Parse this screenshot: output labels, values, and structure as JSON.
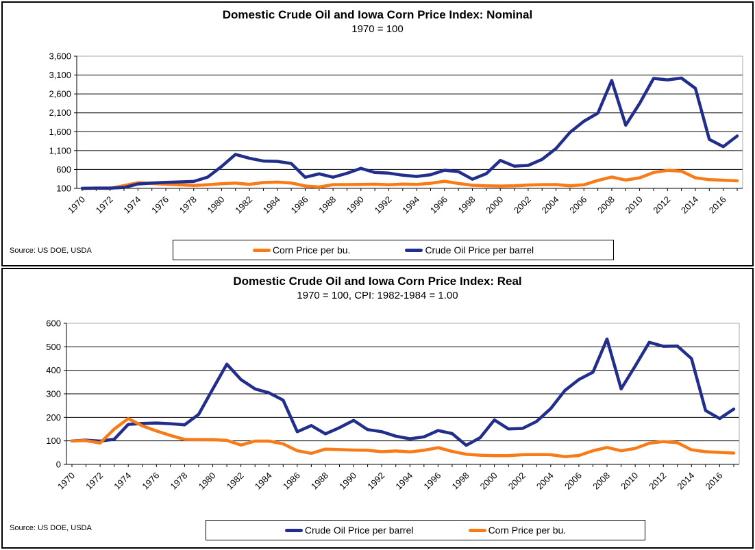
{
  "colors": {
    "corn_orange": "#F87B17",
    "crude_navy": "#222E8C",
    "gridline": "#000000",
    "plot_border": "#A8A8A8",
    "background": "#FFFFFF"
  },
  "chart_data": [
    {
      "type": "line",
      "title": "Domestic Crude Oil and Iowa Corn Price Index: Nominal",
      "subtitle": "1970 = 100",
      "source": "Source: US DOE, USDA",
      "x": [
        1970,
        1971,
        1972,
        1973,
        1974,
        1975,
        1976,
        1977,
        1978,
        1979,
        1980,
        1981,
        1982,
        1983,
        1984,
        1985,
        1986,
        1987,
        1988,
        1989,
        1990,
        1991,
        1992,
        1993,
        1994,
        1995,
        1996,
        1997,
        1998,
        1999,
        2000,
        2001,
        2002,
        2003,
        2004,
        2005,
        2006,
        2007,
        2008,
        2009,
        2010,
        2011,
        2012,
        2013,
        2014,
        2015,
        2016,
        2017
      ],
      "x_tick_labels": [
        "1970",
        "1972",
        "1974",
        "1976",
        "1978",
        "1980",
        "1982",
        "1984",
        "1986",
        "1988",
        "1990",
        "1992",
        "1994",
        "1996",
        "1998",
        "2000",
        "2002",
        "2004",
        "2006",
        "2008",
        "2010",
        "2012",
        "2014",
        "2016"
      ],
      "ylim": [
        100,
        3600
      ],
      "y_ticks": [
        100,
        600,
        1100,
        1600,
        2100,
        2600,
        3100,
        3600
      ],
      "grid": true,
      "legend_position": "bottom-center",
      "series": [
        {
          "name": "Corn Price per bu.",
          "color": "#F87B17",
          "values": [
            100,
            105,
            98,
            172,
            248,
            228,
            208,
            192,
            178,
            196,
            222,
            240,
            205,
            255,
            265,
            242,
            163,
            137,
            198,
            200,
            205,
            210,
            196,
            212,
            203,
            235,
            288,
            228,
            182,
            168,
            162,
            168,
            188,
            198,
            200,
            168,
            195,
            310,
            400,
            320,
            380,
            520,
            575,
            555,
            380,
            330,
            315,
            300
          ]
        },
        {
          "name": "Crude Oil Price per barrel",
          "color": "#222E8C",
          "values": [
            100,
            107,
            107,
            122,
            216,
            241,
            258,
            270,
            283,
            398,
            679,
            999,
            897,
            824,
            814,
            758,
            393,
            484,
            396,
            499,
            630,
            520,
            503,
            448,
            415,
            460,
            581,
            542,
            342,
            489,
            840,
            687,
            708,
            867,
            1156,
            1581,
            1877,
            2092,
            2957,
            1772,
            2349,
            3010,
            2972,
            3019,
            2748,
            1396,
            1204,
            1487
          ]
        }
      ]
    },
    {
      "type": "line",
      "title": "Domestic Crude Oil and Iowa Corn Price Index: Real",
      "subtitle": "1970 = 100, CPI: 1982-1984 = 1.00",
      "source": "Source: US DOE, USDA",
      "x": [
        1970,
        1971,
        1972,
        1973,
        1974,
        1975,
        1976,
        1977,
        1978,
        1979,
        1980,
        1981,
        1982,
        1983,
        1984,
        1985,
        1986,
        1987,
        1988,
        1989,
        1990,
        1991,
        1992,
        1993,
        1994,
        1995,
        1996,
        1997,
        1998,
        1999,
        2000,
        2001,
        2002,
        2003,
        2004,
        2005,
        2006,
        2007,
        2008,
        2009,
        2010,
        2011,
        2012,
        2013,
        2014,
        2015,
        2016,
        2017
      ],
      "x_tick_labels": [
        "1970",
        "1972",
        "1974",
        "1976",
        "1978",
        "1980",
        "1982",
        "1984",
        "1986",
        "1988",
        "1990",
        "1992",
        "1994",
        "1996",
        "1998",
        "2000",
        "2002",
        "2004",
        "2006",
        "2008",
        "2010",
        "2012",
        "2014",
        "2016"
      ],
      "ylim": [
        0,
        600
      ],
      "y_ticks": [
        0,
        100,
        200,
        300,
        400,
        500,
        600
      ],
      "grid": true,
      "legend_position": "bottom-center",
      "series": [
        {
          "name": "Crude Oil Price per barrel",
          "color": "#222E8C",
          "values": [
            100,
            103,
            99,
            107,
            170,
            174,
            176,
            173,
            168,
            213,
            320,
            426,
            361,
            321,
            304,
            273,
            139,
            165,
            130,
            156,
            187,
            148,
            139,
            120,
            109,
            117,
            144,
            131,
            81,
            114,
            189,
            151,
            153,
            183,
            237,
            314,
            361,
            392,
            533,
            321,
            418,
            519,
            502,
            503,
            450,
            229,
            195,
            235
          ]
        },
        {
          "name": "Corn Price per bu.",
          "color": "#F87B17",
          "values": [
            100,
            101,
            91,
            150,
            195,
            164,
            142,
            123,
            106,
            105,
            105,
            102,
            82,
            99,
            99,
            87,
            58,
            47,
            65,
            63,
            61,
            60,
            54,
            57,
            53,
            60,
            71,
            55,
            43,
            39,
            37,
            37,
            41,
            42,
            41,
            33,
            38,
            58,
            72,
            58,
            68,
            90,
            97,
            92,
            62,
            54,
            51,
            48
          ]
        }
      ]
    }
  ]
}
